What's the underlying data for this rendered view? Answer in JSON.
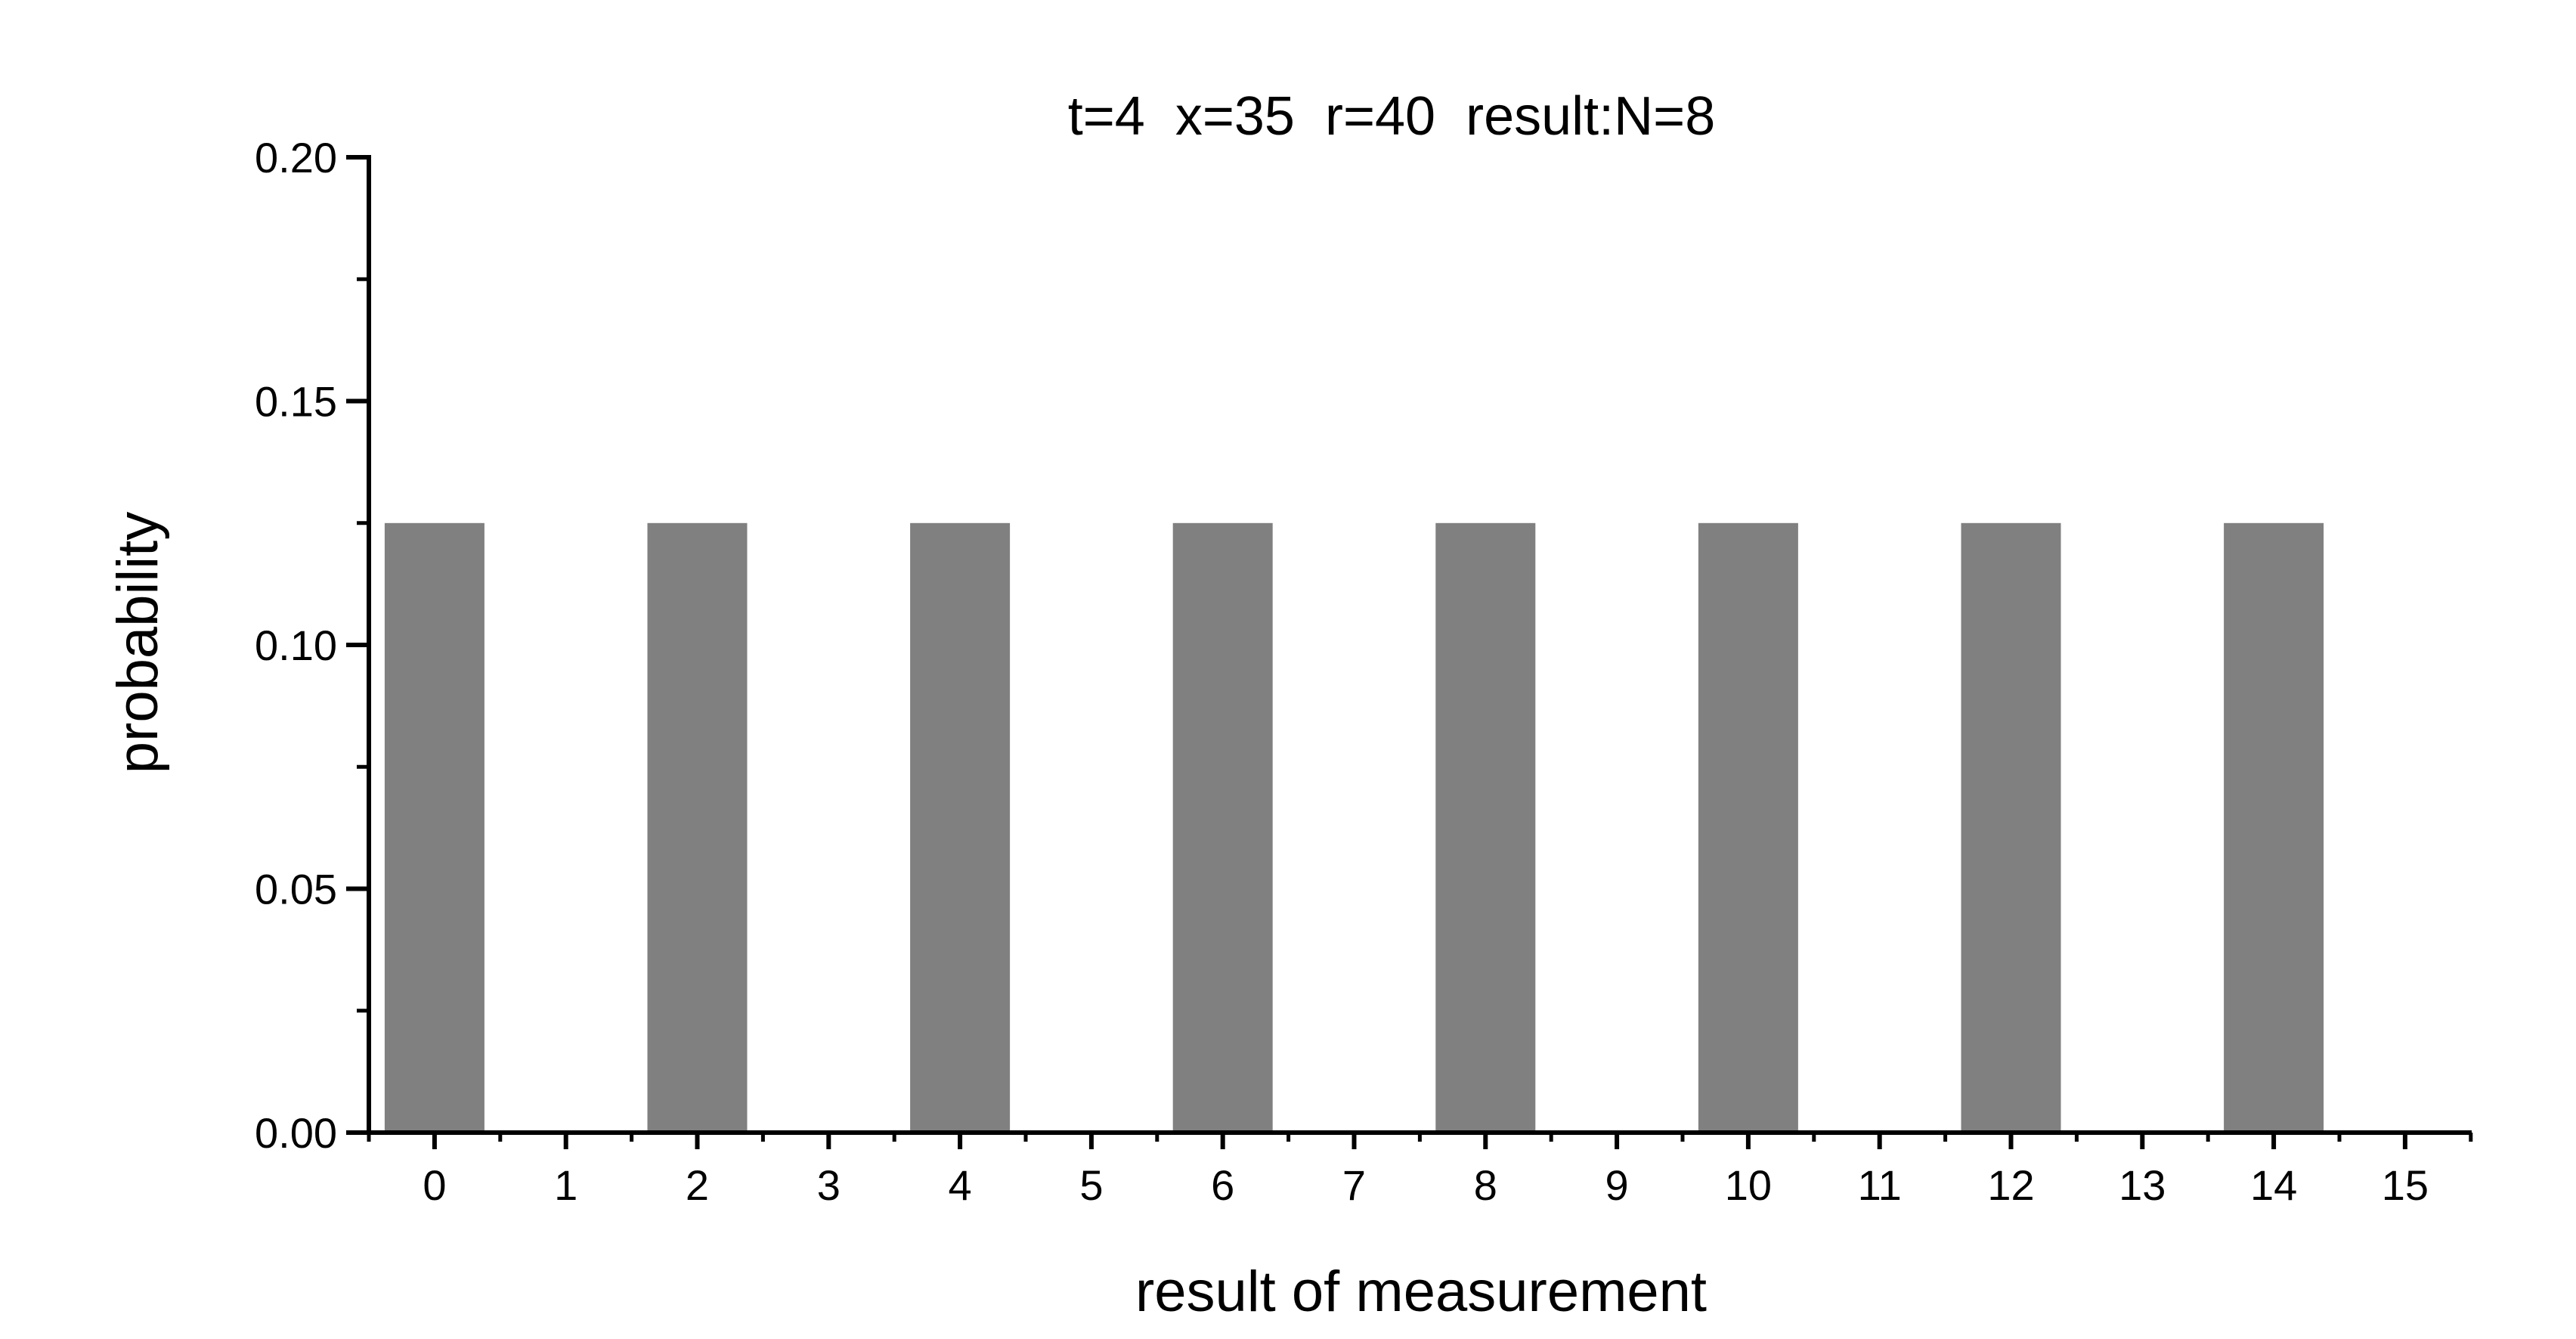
{
  "chart_data": {
    "type": "bar",
    "title": "t=4  x=35  r=40  result:N=8",
    "xlabel": "result of measurement",
    "ylabel": "probability",
    "categories": [
      "0",
      "1",
      "2",
      "3",
      "4",
      "5",
      "6",
      "7",
      "8",
      "9",
      "10",
      "11",
      "12",
      "13",
      "14",
      "15"
    ],
    "values": [
      0.125,
      0,
      0.125,
      0,
      0.125,
      0,
      0.125,
      0,
      0.125,
      0,
      0.125,
      0,
      0.125,
      0,
      0.125,
      0
    ],
    "ylim": [
      0,
      0.2
    ],
    "yticks": [
      "0.00",
      "0.05",
      "0.10",
      "0.15",
      "0.20"
    ],
    "grid": false,
    "legend": "none",
    "bar_color": "#808080"
  }
}
